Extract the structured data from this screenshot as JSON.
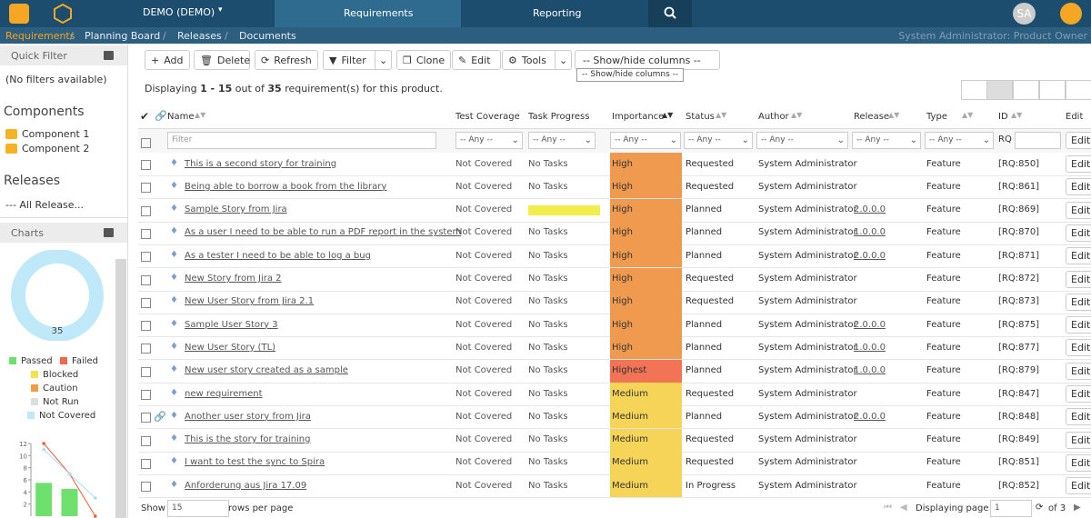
{
  "nav": {
    "project": "DEMO (DEMO)",
    "tabs": [
      "Requirements",
      "Reporting"
    ],
    "user": "SA"
  },
  "breadcrumb": {
    "items": [
      "Requirements",
      "Planning Board",
      "Releases",
      "Documents"
    ],
    "role": "System Administrator: Product Owner"
  },
  "sidebar": {
    "quick_filter": "Quick Filter",
    "no_filters": "(No filters available)",
    "components_title": "Components",
    "components": [
      "Component 1",
      "Component 2"
    ],
    "releases_title": "Releases",
    "release_select": "--- All Release...",
    "charts_title": "Charts"
  },
  "chart_data": [
    {
      "type": "pie",
      "categories": [
        "Passed",
        "Failed",
        "Blocked",
        "Caution",
        "Not Run",
        "Not Covered"
      ],
      "values": [
        0,
        0,
        0,
        0,
        0,
        35
      ],
      "colors": [
        "#6de06d",
        "#f2664b",
        "#f2e34c",
        "#f59a45",
        "#dddddd",
        "#bfe9f9"
      ]
    },
    {
      "type": "bar",
      "ylim": [
        0,
        12
      ],
      "yticks": [
        2,
        4,
        6,
        8,
        10,
        12
      ],
      "values": [
        5.5,
        4.5
      ],
      "color": "#6de06d",
      "lines": [
        {
          "color": "#f05a3c",
          "values": [
            12,
            7,
            0
          ]
        },
        {
          "color": "#a9def5",
          "values": [
            11,
            7,
            3
          ]
        }
      ]
    }
  ],
  "toolbar": {
    "buttons": [
      "Add",
      "Delete",
      "Refresh",
      "Filter",
      "Clone",
      "Edit",
      "Tools"
    ],
    "columns_select": "-- Show/hide columns --",
    "tooltip": "-- Show/hide columns --"
  },
  "summary": {
    "prefix": "Displaying",
    "range": "1 - 15",
    "middle": "out of",
    "total": "35",
    "suffix": "requirement(s) for this product."
  },
  "table": {
    "columns": [
      "Name",
      "Test Coverage",
      "Task Progress",
      "Importance",
      "Status",
      "Author",
      "Release",
      "Type",
      "ID",
      "Edit"
    ],
    "filter_placeholder": "Filter",
    "any": "-- Any --",
    "id_prefix": "RQ",
    "edit": "Edit",
    "importance_colors": {
      "High": "#f09a50",
      "Highest": "#f27356",
      "Medium": "#f6d457"
    },
    "rows": [
      {
        "name": "This is a second story for training",
        "coverage": "Not Covered",
        "progress": "No Tasks",
        "importance": "High",
        "status": "Requested",
        "author": "System Administrator",
        "release": null,
        "type": "Feature",
        "id": "[RQ:850]"
      },
      {
        "name": "Being able to borrow a book from the library",
        "coverage": "Not Covered",
        "progress": "No Tasks",
        "importance": "High",
        "status": "Requested",
        "author": "System Administrator",
        "release": null,
        "type": "Feature",
        "id": "[RQ:861]"
      },
      {
        "name": "Sample Story from Jira",
        "coverage": "Not Covered",
        "progress": null,
        "importance": "High",
        "status": "Planned",
        "author": "System Administrator",
        "release": "2.0.0.0",
        "type": "Feature",
        "id": "[RQ:869]"
      },
      {
        "name": "As a user I need to be able to run a PDF report in the system",
        "coverage": "Not Covered",
        "progress": "No Tasks",
        "importance": "High",
        "status": "Planned",
        "author": "System Administrator",
        "release": "1.0.0.0",
        "type": "Feature",
        "id": "[RQ:870]"
      },
      {
        "name": "As a tester I need to be able to log a bug",
        "coverage": "Not Covered",
        "progress": "No Tasks",
        "importance": "High",
        "status": "Planned",
        "author": "System Administrator",
        "release": "2.0.0.0",
        "type": "Feature",
        "id": "[RQ:871]"
      },
      {
        "name": "New Story from Jira 2",
        "coverage": "Not Covered",
        "progress": "No Tasks",
        "importance": "High",
        "status": "Requested",
        "author": "System Administrator",
        "release": null,
        "type": "Feature",
        "id": "[RQ:872]"
      },
      {
        "name": "New User Story from Jira 2.1",
        "coverage": "Not Covered",
        "progress": "No Tasks",
        "importance": "High",
        "status": "Requested",
        "author": "System Administrator",
        "release": null,
        "type": "Feature",
        "id": "[RQ:873]"
      },
      {
        "name": "Sample User Story 3",
        "coverage": "Not Covered",
        "progress": "No Tasks",
        "importance": "High",
        "status": "Planned",
        "author": "System Administrator",
        "release": "2.0.0.0",
        "type": "Feature",
        "id": "[RQ:875]"
      },
      {
        "name": "New User Story (TL)",
        "coverage": "Not Covered",
        "progress": "No Tasks",
        "importance": "High",
        "status": "Planned",
        "author": "System Administrator",
        "release": "1.0.0.0",
        "type": "Feature",
        "id": "[RQ:877]"
      },
      {
        "name": "New user story created as a sample",
        "coverage": "Not Covered",
        "progress": "No Tasks",
        "importance": "Highest",
        "status": "Planned",
        "author": "System Administrator",
        "release": "1.0.0.0",
        "type": "Feature",
        "id": "[RQ:879]"
      },
      {
        "name": "new requirement",
        "coverage": "Not Covered",
        "progress": "No Tasks",
        "importance": "Medium",
        "status": "Requested",
        "author": "System Administrator",
        "release": null,
        "type": "Feature",
        "id": "[RQ:847]"
      },
      {
        "name": "Another user story from Jira",
        "coverage": "Not Covered",
        "progress": "No Tasks",
        "importance": "Medium",
        "status": "Planned",
        "author": "System Administrator",
        "release": "2.0.0.0",
        "type": "Feature",
        "id": "[RQ:848]",
        "attachment": true
      },
      {
        "name": "This is the story for training",
        "coverage": "Not Covered",
        "progress": "No Tasks",
        "importance": "Medium",
        "status": "Requested",
        "author": "System Administrator",
        "release": null,
        "type": "Feature",
        "id": "[RQ:849]"
      },
      {
        "name": "I want to test the sync to Spira",
        "coverage": "Not Covered",
        "progress": "No Tasks",
        "importance": "Medium",
        "status": "Requested",
        "author": "System Administrator",
        "release": null,
        "type": "Feature",
        "id": "[RQ:851]"
      },
      {
        "name": "Anforderung aus Jira 17.09",
        "coverage": "Not Covered",
        "progress": "No Tasks",
        "importance": "Medium",
        "status": "In Progress",
        "author": "System Administrator",
        "release": null,
        "type": "Feature",
        "id": "[RQ:852]"
      }
    ]
  },
  "footer": {
    "show": "Show",
    "page_size": "15",
    "rows_per_page": "rows per page",
    "displaying_page": "Displaying page",
    "page": "1",
    "of": "of 3"
  }
}
